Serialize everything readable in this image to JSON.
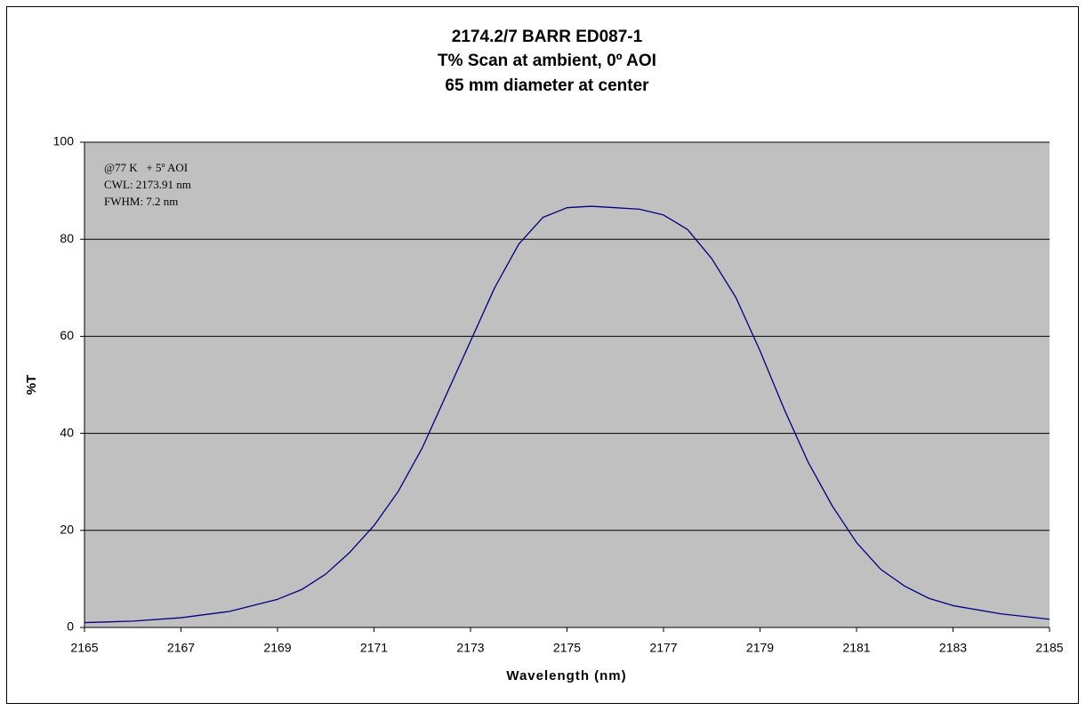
{
  "chart_data": {
    "type": "line",
    "title": [
      "2174.2/7 BARR ED087-1",
      "T%  Scan at ambient, 0º AOI",
      "65 mm diameter at center"
    ],
    "annotations": [
      "@77 K   + 5º AOI",
      "CWL: 2173.91 nm",
      "FWHM: 7.2 nm"
    ],
    "xlabel": "Wavelength (nm)",
    "ylabel": "%T",
    "x": [
      2165,
      2166,
      2167,
      2168,
      2169,
      2169.5,
      2170,
      2170.5,
      2171,
      2171.5,
      2172,
      2172.5,
      2173,
      2173.5,
      2174,
      2174.5,
      2175,
      2175.5,
      2176,
      2176.5,
      2177,
      2177.5,
      2178,
      2178.5,
      2179,
      2179.5,
      2180,
      2180.5,
      2181,
      2181.5,
      2182,
      2182.5,
      2183,
      2184,
      2185
    ],
    "values": [
      1.0,
      1.3,
      2.0,
      3.3,
      5.8,
      7.8,
      11,
      15.5,
      21,
      28,
      37,
      48,
      59,
      70,
      79,
      84.5,
      86.5,
      86.8,
      86.5,
      86.2,
      85,
      82,
      76,
      68,
      57,
      45,
      34,
      25,
      17.5,
      12,
      8.5,
      6,
      4.5,
      2.8,
      1.7
    ],
    "color": "#000080",
    "plot_background": "#c0c0c0",
    "xlim": [
      2165,
      2185
    ],
    "xticks": [
      2165,
      2167,
      2169,
      2171,
      2173,
      2175,
      2177,
      2179,
      2181,
      2183,
      2185
    ],
    "ylim": [
      0,
      100
    ],
    "yticks": [
      0,
      20,
      40,
      60,
      80,
      100
    ],
    "grid": true
  }
}
